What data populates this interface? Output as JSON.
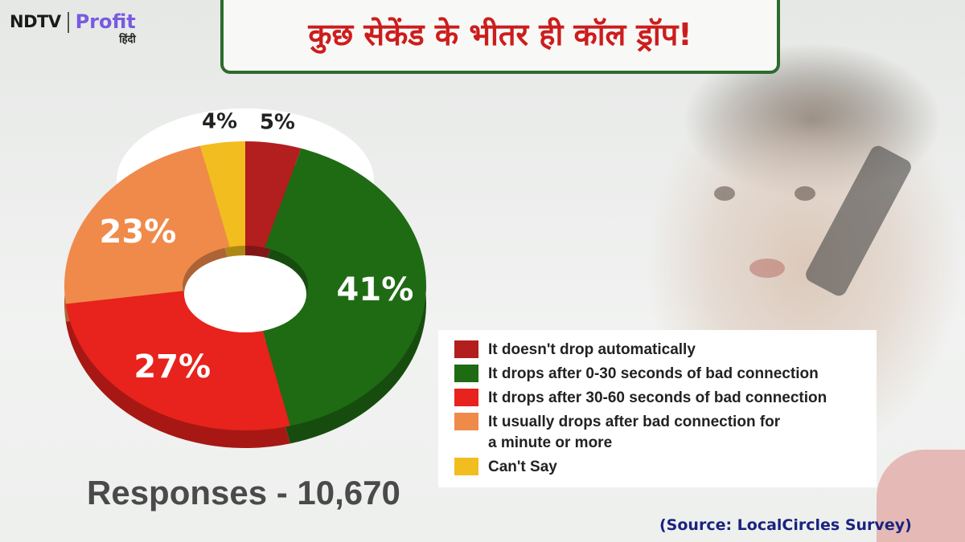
{
  "brand": {
    "ndtv": "NDTV",
    "profit": "Profit",
    "hindi": "हिंदी"
  },
  "headline": "कुछ सेकेंड के भीतर ही कॉल ड्रॉप!",
  "chart_data": {
    "type": "pie",
    "style": "donut",
    "title": "",
    "categories": [
      "It doesn't drop automatically",
      "It drops after 0-30 seconds of bad connection",
      "It drops after 30-60 seconds of bad connection",
      "It usually drops after bad connection for\na minute or more",
      "Can't Say"
    ],
    "values": [
      5,
      41,
      27,
      23,
      4
    ],
    "value_labels": [
      "5%",
      "41%",
      "27%",
      "23%",
      "4%"
    ],
    "colors": [
      "#b31e1e",
      "#1f6b14",
      "#e8221c",
      "#f08a4b",
      "#f2bd1e"
    ],
    "legend_position": "right"
  },
  "responses": "Responses - 10,670",
  "source": "(Source: LocalCircles Survey)"
}
